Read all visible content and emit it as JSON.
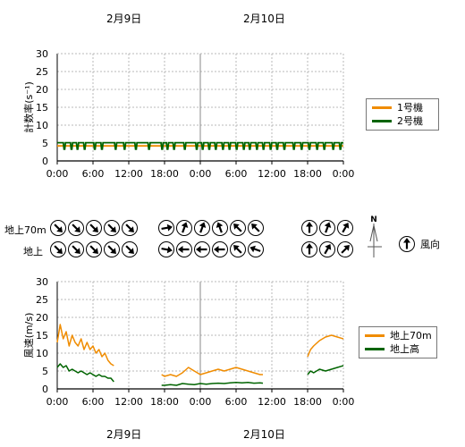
{
  "header_dates": [
    "2月9日",
    "2月10日"
  ],
  "footer_dates": [
    "2月9日",
    "2月10日"
  ],
  "colors": {
    "unit1": "#f08c00",
    "unit2": "#006400",
    "wind70": "#f08c00",
    "windGround": "#006400",
    "grid": "#b8b8b8"
  },
  "chart_data": [
    {
      "type": "line",
      "ylabel": "計数率(s⁻¹)",
      "ylim": [
        0,
        30
      ],
      "yticks": [
        0,
        5,
        10,
        15,
        20,
        25,
        30
      ],
      "x_ticks": [
        "0:00",
        "6:00",
        "12:00",
        "18:00",
        "0:00",
        "6:00",
        "12:00",
        "18:00",
        "0:00"
      ],
      "x_range_hours": [
        0,
        48
      ],
      "grid": true,
      "legend": "right",
      "series": [
        {
          "name": "1号機",
          "color": "#f08c00",
          "constant": 4.2,
          "dips": []
        },
        {
          "name": "2号機",
          "color": "#006400",
          "constant": 5.1,
          "dips": [
            1.2,
            2.4,
            3.4,
            4.6,
            6.3,
            7.5,
            9.8,
            11.3,
            13.2,
            15.4,
            17.6,
            18.5,
            19.6,
            21.4,
            23.4,
            24.4,
            25.5,
            26.6,
            27.8,
            28.9,
            30.1,
            31.3,
            32.3,
            33.5,
            34.6,
            35.8,
            36.9,
            38.1,
            39.7,
            41.0,
            42.3,
            43.6,
            44.8,
            46.3,
            47.5
          ],
          "dip_value": 3.3
        }
      ]
    },
    {
      "type": "line",
      "ylabel": "風速(m/s)",
      "ylim": [
        0,
        30
      ],
      "yticks": [
        0,
        5,
        10,
        15,
        20,
        25,
        30
      ],
      "x_ticks": [
        "0:00",
        "6:00",
        "12:00",
        "18:00",
        "0:00",
        "6:00",
        "12:00",
        "18:00",
        "0:00"
      ],
      "x_range_hours": [
        0,
        48
      ],
      "grid": true,
      "legend": "right",
      "series": [
        {
          "name": "地上70m",
          "color": "#f08c00",
          "segments": [
            {
              "x": [
                0,
                0.5,
                1,
                1.5,
                2,
                2.5,
                3,
                3.5,
                4,
                4.5,
                5,
                5.5,
                6,
                6.5,
                7,
                7.5,
                8,
                8.5,
                9,
                9.5
              ],
              "y": [
                13,
                18,
                14,
                16,
                12,
                15,
                13,
                12,
                14,
                11,
                13,
                11,
                12,
                10,
                11,
                9,
                10,
                8,
                7,
                6.5
              ]
            },
            {
              "x": [
                17.5,
                18,
                19,
                20,
                21,
                22,
                23,
                24,
                25,
                26,
                27,
                28,
                29,
                30,
                31,
                32,
                33,
                34,
                34.5
              ],
              "y": [
                4,
                3.5,
                4,
                3.5,
                4.5,
                6,
                5,
                4,
                4.5,
                5,
                5.5,
                5,
                5.5,
                6,
                5.5,
                5,
                4.5,
                4,
                4
              ]
            },
            {
              "x": [
                42,
                42.5,
                43,
                44,
                45,
                46,
                47,
                48
              ],
              "y": [
                9,
                11,
                12,
                13.5,
                14.5,
                15,
                14.5,
                14
              ]
            }
          ]
        },
        {
          "name": "地上高",
          "color": "#006400",
          "segments": [
            {
              "x": [
                0,
                0.5,
                1,
                1.5,
                2,
                2.5,
                3,
                3.5,
                4,
                4.5,
                5,
                5.5,
                6,
                6.5,
                7,
                7.5,
                8,
                8.5,
                9,
                9.5
              ],
              "y": [
                6,
                7,
                6,
                6.5,
                5,
                5.5,
                5,
                4.5,
                5,
                4.5,
                4,
                4.5,
                4,
                3.5,
                4,
                3.5,
                3.5,
                3,
                3,
                2
              ]
            },
            {
              "x": [
                17.5,
                18,
                19,
                20,
                21,
                22,
                23,
                24,
                25,
                26,
                27,
                28,
                29,
                30,
                31,
                32,
                33,
                34,
                34.5
              ],
              "y": [
                1,
                1,
                1.2,
                1,
                1.5,
                1.3,
                1.2,
                1.5,
                1.3,
                1.5,
                1.6,
                1.5,
                1.7,
                1.8,
                1.7,
                1.8,
                1.6,
                1.7,
                1.6
              ]
            },
            {
              "x": [
                42,
                42.5,
                43,
                44,
                45,
                46,
                47,
                48
              ],
              "y": [
                4,
                5,
                4.5,
                5.5,
                5,
                5.5,
                6,
                6.5
              ]
            }
          ]
        }
      ]
    }
  ],
  "wind_direction": {
    "rows": [
      {
        "label": "地上70m",
        "groups": [
          [
            135,
            135,
            135,
            135,
            135
          ],
          [
            80,
            20,
            20,
            340,
            315,
            315
          ],
          [
            0,
            20,
            30
          ]
        ]
      },
      {
        "label": "地上",
        "groups": [
          [
            135,
            135,
            135,
            135,
            135
          ],
          [
            100,
            270,
            270,
            270,
            315,
            290
          ],
          [
            0,
            30,
            45
          ]
        ]
      }
    ],
    "legend_label": "風向",
    "compass_label": "N"
  }
}
